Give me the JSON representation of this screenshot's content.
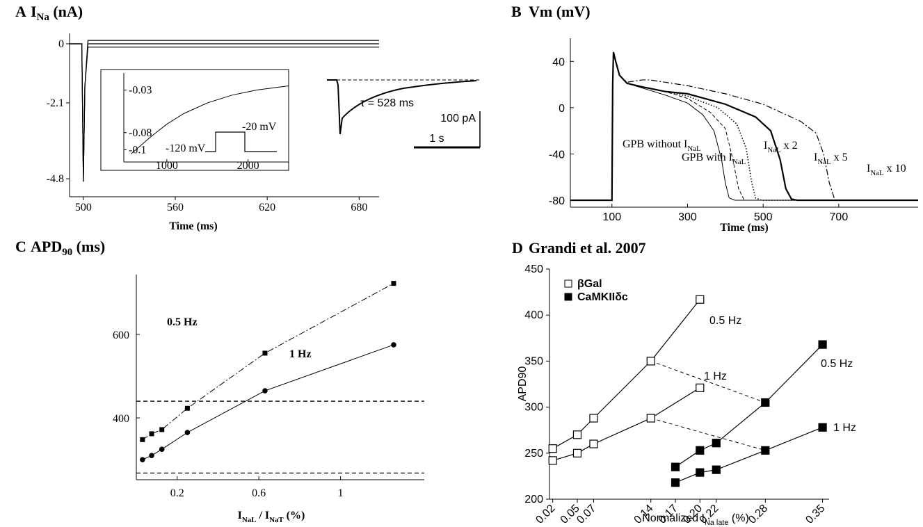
{
  "chart_data": [
    {
      "type": "line",
      "panel": "A",
      "title": [
        "I",
        [
          "Na"
        ],
        " (nA)"
      ],
      "xlabel": "Time (ms)",
      "color": "#000000",
      "xlim": [
        491,
        693
      ],
      "ylim": [
        -5.44,
        0.37
      ],
      "xticks": [
        500,
        560,
        620,
        680
      ],
      "yticks": [
        0,
        -2.1,
        -4.8
      ],
      "series": [
        {
          "x": [
            491,
            499,
            500,
            501,
            503,
            693
          ],
          "values": [
            0,
            0,
            -4.9,
            -1.5,
            0.12,
            0.12
          ]
        },
        {
          "x": [
            491,
            499,
            500,
            501,
            503,
            693
          ],
          "values": [
            0,
            0,
            -4.9,
            -1.5,
            0,
            0
          ]
        },
        {
          "x": [
            491,
            499,
            500,
            501,
            503,
            693
          ],
          "values": [
            0,
            0,
            -4.9,
            -1.5,
            -0.12,
            -0.12
          ]
        }
      ],
      "inset": {
        "xlim": [
          470,
          2500
        ],
        "ylim": [
          -0.1145,
          -0.0099
        ],
        "xticks": [
          1000,
          2000
        ],
        "yticks": [
          -0.03,
          -0.08,
          -0.1
        ],
        "x": [
          560,
          800,
          1000,
          1200,
          1500,
          1800,
          2100,
          2500
        ],
        "values": [
          -0.105,
          -0.085,
          -0.07,
          -0.058,
          -0.045,
          -0.036,
          -0.03,
          -0.025
        ],
        "annotations": [
          "-120 mV",
          "-20 mV"
        ]
      },
      "trace_note": {
        "tau": "τ = 528 ms",
        "scale_y": "100 pA",
        "scale_x": "1 s"
      }
    },
    {
      "type": "line",
      "panel": "B",
      "title": "Vm (mV)",
      "xlabel": "Time (ms)",
      "xlim": [
        -10,
        910
      ],
      "ylim": [
        -86,
        60
      ],
      "xticks": [
        100,
        300,
        500,
        700
      ],
      "yticks": [
        40,
        0,
        -40,
        -80
      ],
      "series": [
        {
          "label": [
            "GPB without I",
            [
              "NaL"
            ]
          ],
          "color": "#555555",
          "style": "solid",
          "width": 1,
          "x": [
            -10,
            100,
            102,
            104,
            110,
            120,
            140,
            180,
            240,
            300,
            340,
            370,
            390,
            400,
            410,
            425,
            910
          ],
          "values": [
            -80,
            -80,
            20,
            48,
            40,
            28,
            21,
            17,
            11,
            4,
            -6,
            -20,
            -45,
            -65,
            -78,
            -80,
            -80
          ]
        },
        {
          "label": [
            "GPB with I",
            [
              "NaL"
            ]
          ],
          "color": "#8a8a8a",
          "style": "dashed",
          "width": 1,
          "x": [
            -10,
            100,
            102,
            104,
            110,
            120,
            140,
            180,
            240,
            300,
            360,
            400,
            420,
            435,
            450,
            910
          ],
          "values": [
            -80,
            -80,
            20,
            48,
            40,
            28,
            21,
            18,
            14,
            8,
            -4,
            -18,
            -45,
            -70,
            -80,
            -80
          ]
        },
        {
          "label": [
            "I",
            [
              "NaL"
            ],
            " x 2"
          ],
          "color": "#000000",
          "style": "dotted",
          "width": 1.6,
          "x": [
            -10,
            100,
            102,
            104,
            110,
            120,
            140,
            180,
            240,
            300,
            380,
            430,
            455,
            470,
            480,
            495,
            910
          ],
          "values": [
            -80,
            -80,
            20,
            48,
            40,
            28,
            21,
            18,
            14,
            10,
            0,
            -14,
            -35,
            -65,
            -78,
            -80,
            -80
          ]
        },
        {
          "label": [
            "I",
            [
              "NaL"
            ],
            " x 5"
          ],
          "color": "#000000",
          "style": "solid",
          "width": 2.2,
          "x": [
            -10,
            100,
            102,
            104,
            110,
            120,
            140,
            180,
            240,
            300,
            400,
            480,
            520,
            545,
            560,
            575,
            590,
            910
          ],
          "values": [
            -80,
            -80,
            20,
            48,
            40,
            28,
            21,
            18,
            14,
            12,
            3,
            -8,
            -20,
            -45,
            -70,
            -79,
            -80,
            -80
          ]
        },
        {
          "label": [
            "I",
            [
              "NaL"
            ],
            " x 10"
          ],
          "color": "#000000",
          "style": "dashdot",
          "width": 1.2,
          "x": [
            -10,
            100,
            102,
            104,
            110,
            120,
            140,
            180,
            200,
            300,
            400,
            500,
            600,
            640,
            660,
            675,
            690,
            910
          ],
          "values": [
            -80,
            -80,
            20,
            48,
            40,
            28,
            22,
            24,
            24,
            19,
            12,
            3,
            -12,
            -22,
            -40,
            -65,
            -80,
            -80
          ]
        }
      ]
    },
    {
      "type": "line",
      "panel": "C",
      "title": [
        "APD",
        [
          "90"
        ],
        " (ms)"
      ],
      "xlabel": [
        "I",
        [
          "NaL"
        ],
        " / I",
        [
          "NaT"
        ],
        " (%)"
      ],
      "color": "#000000",
      "xlim": [
        0,
        1.41
      ],
      "ylim": [
        252,
        743
      ],
      "xticks": [
        0.2,
        0.6,
        1
      ],
      "yticks": [
        400,
        600
      ],
      "hlines": [
        440,
        268
      ],
      "hline_color": "#999999",
      "series": [
        {
          "label": "0.5 Hz",
          "marker": "square",
          "style": "dashdot",
          "x": [
            0.03,
            0.075,
            0.125,
            0.25,
            0.63,
            1.26
          ],
          "values": [
            348,
            362,
            372,
            423,
            555,
            722
          ]
        },
        {
          "label": "1 Hz",
          "marker": "circle",
          "style": "solid",
          "x": [
            0.03,
            0.075,
            0.125,
            0.25,
            0.63,
            1.26
          ],
          "values": [
            300,
            310,
            325,
            365,
            465,
            575
          ]
        }
      ]
    },
    {
      "type": "line",
      "panel": "D",
      "title": "Grandi et al. 2007",
      "ylabel": "APD90",
      "xlabel": [
        "Normalized I",
        [
          "Na late"
        ],
        " (%)"
      ],
      "color": "#000000",
      "xlim": [
        0.016,
        0.358
      ],
      "ylim": [
        200,
        450
      ],
      "xticks": [
        0.02,
        0.05,
        0.07,
        0.14,
        0.17,
        {
          "value": 0.2,
          "label": "0.20"
        },
        0.22,
        0.28,
        0.35
      ],
      "yticks": [
        200,
        250,
        300,
        350,
        400,
        450
      ],
      "groups": [
        {
          "name": "βGal",
          "marker_fill": "#ffffff",
          "series": [
            {
              "label": "0.5 Hz",
              "x": [
                0.02,
                0.05,
                0.07,
                0.14,
                0.2
              ],
              "values": [
                255,
                270,
                288,
                350,
                417
              ]
            },
            {
              "label": "1 Hz",
              "x": [
                0.02,
                0.05,
                0.07,
                0.14,
                0.2
              ],
              "values": [
                242,
                250,
                260,
                288,
                321
              ]
            }
          ]
        },
        {
          "name": "CaMKIIδc",
          "marker_fill": "#000000",
          "series": [
            {
              "label": "0.5 Hz",
              "x": [
                0.17,
                0.2,
                0.22,
                0.28,
                0.35
              ],
              "values": [
                235,
                253,
                261,
                305,
                368
              ]
            },
            {
              "label": "1 Hz",
              "x": [
                0.17,
                0.2,
                0.22,
                0.28,
                0.35
              ],
              "values": [
                218,
                229,
                232,
                253,
                278
              ]
            }
          ]
        }
      ]
    }
  ]
}
